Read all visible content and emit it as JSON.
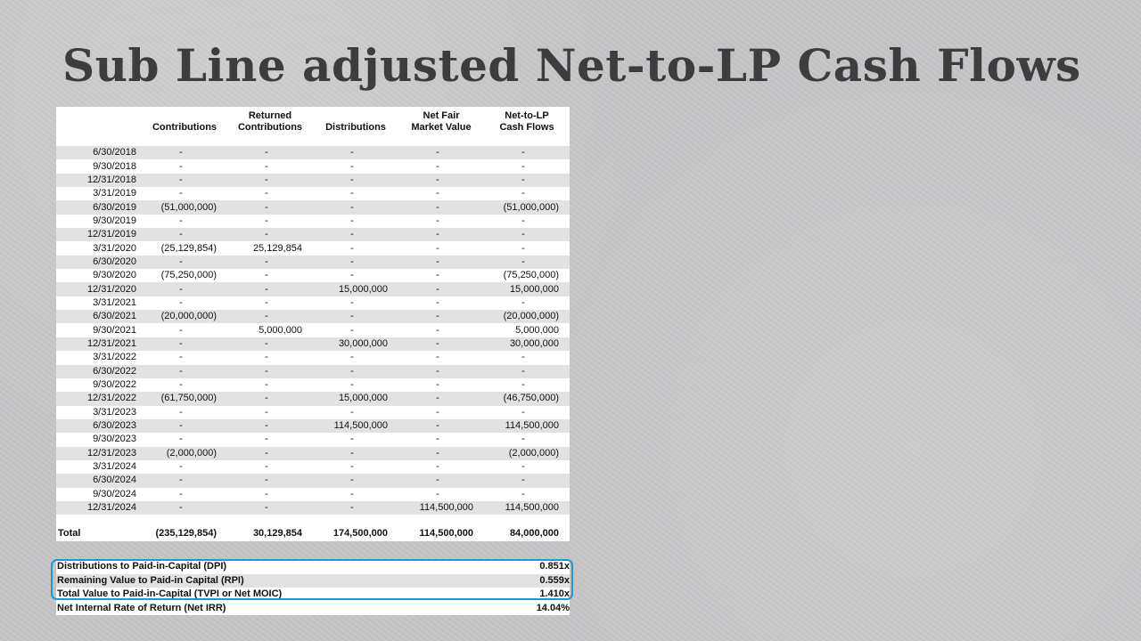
{
  "slide": {
    "title": "Sub Line adjusted Net-to-LP Cash Flows"
  },
  "table": {
    "headers": [
      "",
      "Contributions",
      "Returned\nContributions",
      "Distributions",
      "Net Fair\nMarket Value",
      "Net-to-LP\nCash Flows"
    ],
    "rows": [
      [
        "6/30/2018",
        "-",
        "-",
        "-",
        "-",
        "-"
      ],
      [
        "9/30/2018",
        "-",
        "-",
        "-",
        "-",
        "-"
      ],
      [
        "12/31/2018",
        "-",
        "-",
        "-",
        "-",
        "-"
      ],
      [
        "3/31/2019",
        "-",
        "-",
        "-",
        "-",
        "-"
      ],
      [
        "6/30/2019",
        "(51,000,000)",
        "-",
        "-",
        "-",
        "(51,000,000)"
      ],
      [
        "9/30/2019",
        "-",
        "-",
        "-",
        "-",
        "-"
      ],
      [
        "12/31/2019",
        "-",
        "-",
        "-",
        "-",
        "-"
      ],
      [
        "3/31/2020",
        "(25,129,854)",
        "25,129,854",
        "-",
        "-",
        "-"
      ],
      [
        "6/30/2020",
        "-",
        "-",
        "-",
        "-",
        "-"
      ],
      [
        "9/30/2020",
        "(75,250,000)",
        "-",
        "-",
        "-",
        "(75,250,000)"
      ],
      [
        "12/31/2020",
        "-",
        "-",
        "15,000,000",
        "-",
        "15,000,000"
      ],
      [
        "3/31/2021",
        "-",
        "-",
        "-",
        "-",
        "-"
      ],
      [
        "6/30/2021",
        "(20,000,000)",
        "-",
        "-",
        "-",
        "(20,000,000)"
      ],
      [
        "9/30/2021",
        "-",
        "5,000,000",
        "-",
        "-",
        "5,000,000"
      ],
      [
        "12/31/2021",
        "-",
        "-",
        "30,000,000",
        "-",
        "30,000,000"
      ],
      [
        "3/31/2022",
        "-",
        "-",
        "-",
        "-",
        "-"
      ],
      [
        "6/30/2022",
        "-",
        "-",
        "-",
        "-",
        "-"
      ],
      [
        "9/30/2022",
        "-",
        "-",
        "-",
        "-",
        "-"
      ],
      [
        "12/31/2022",
        "(61,750,000)",
        "-",
        "15,000,000",
        "-",
        "(46,750,000)"
      ],
      [
        "3/31/2023",
        "-",
        "-",
        "-",
        "-",
        "-"
      ],
      [
        "6/30/2023",
        "-",
        "-",
        "114,500,000",
        "-",
        "114,500,000"
      ],
      [
        "9/30/2023",
        "-",
        "-",
        "-",
        "-",
        "-"
      ],
      [
        "12/31/2023",
        "(2,000,000)",
        "-",
        "-",
        "-",
        "(2,000,000)"
      ],
      [
        "3/31/2024",
        "-",
        "-",
        "-",
        "-",
        "-"
      ],
      [
        "6/30/2024",
        "-",
        "-",
        "-",
        "-",
        "-"
      ],
      [
        "9/30/2024",
        "-",
        "-",
        "-",
        "-",
        "-"
      ],
      [
        "12/31/2024",
        "-",
        "-",
        "-",
        "114,500,000",
        "114,500,000"
      ]
    ],
    "total": [
      "Total",
      "(235,129,854)",
      "30,129,854",
      "174,500,000",
      "114,500,000",
      "84,000,000"
    ]
  },
  "metrics": [
    {
      "label": "Distributions to Paid-in-Capital (DPI)",
      "value": "0.851x"
    },
    {
      "label": "Remaining Value to Paid-in Capital (RPI)",
      "value": "0.559x"
    },
    {
      "label": "Total Value to Paid-in-Capital (TVPI or Net MOIC)",
      "value": "1.410x"
    },
    {
      "label": "Net Internal Rate of Return (Net IRR)",
      "value": "14.04%"
    }
  ],
  "colors": {
    "highlight": "#1b9ad6",
    "stripe": "#e4e1e5",
    "title": "#3d3d3f"
  }
}
